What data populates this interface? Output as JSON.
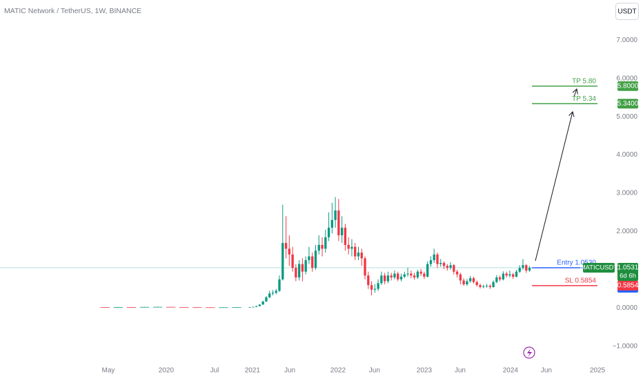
{
  "chart_data": {
    "type": "candlestick",
    "title": "MATIC Network / TetherUS, 1W, BINANCE",
    "currency": "USDT",
    "up_color": "#089981",
    "down_color": "#f23645",
    "xlim": [
      -65.8,
      306.5
    ],
    "ylim": [
      -1.4,
      8.05
    ],
    "xticks": [
      {
        "value": 0,
        "label": "May"
      },
      {
        "value": 35.2,
        "label": "2020"
      },
      {
        "value": 64.6,
        "label": "Jul"
      },
      {
        "value": 87.6,
        "label": "2021"
      },
      {
        "value": 110.3,
        "label": "Jun"
      },
      {
        "value": 139.6,
        "label": "2022"
      },
      {
        "value": 161.8,
        "label": "Jun"
      },
      {
        "value": 192,
        "label": "2023"
      },
      {
        "value": 213.8,
        "label": "Jun"
      },
      {
        "value": 244.4,
        "label": "2024"
      },
      {
        "value": 266.2,
        "label": "Jun"
      },
      {
        "value": 297.3,
        "label": "2025"
      }
    ],
    "yticks": [
      {
        "value": -1,
        "label": "−1.0000"
      },
      {
        "value": 0,
        "label": "0.0000"
      },
      {
        "value": 1,
        "label": "1.0000"
      },
      {
        "value": 2,
        "label": "2.0000"
      },
      {
        "value": 3,
        "label": "3.0000"
      },
      {
        "value": 4,
        "label": "4.0000"
      },
      {
        "value": 5,
        "label": "5.0000"
      },
      {
        "value": 6,
        "label": "6.0000"
      },
      {
        "value": 7,
        "label": "7.0000"
      }
    ],
    "x": [
      -2,
      6,
      14,
      22,
      30,
      38,
      46,
      54,
      62,
      70,
      78,
      86,
      88,
      90,
      92,
      94,
      96,
      98,
      100,
      102,
      104,
      106,
      108,
      110,
      112,
      114,
      116,
      118,
      120,
      122,
      124,
      126,
      128,
      130,
      132,
      134,
      136,
      138,
      140,
      142,
      144,
      146,
      148,
      150,
      152,
      154,
      156,
      158,
      160,
      162,
      164,
      166,
      168,
      170,
      172,
      174,
      176,
      178,
      180,
      182,
      184,
      186,
      188,
      190,
      192,
      194,
      196,
      198,
      200,
      202,
      204,
      206,
      208,
      210,
      212,
      214,
      216,
      218,
      220,
      222,
      224,
      226,
      228,
      230,
      232,
      234,
      236,
      238,
      240,
      242,
      244,
      246,
      248,
      250,
      252,
      254,
      256
    ],
    "open": [
      0.022,
      0.02,
      0.025,
      0.022,
      0.028,
      0.03,
      0.024,
      0.02,
      0.018,
      0.017,
      0.018,
      0.02,
      0.025,
      0.03,
      0.05,
      0.09,
      0.17,
      0.28,
      0.38,
      0.4,
      0.45,
      0.75,
      1.7,
      1.55,
      1.4,
      1.05,
      0.8,
      1.15,
      0.95,
      1.25,
      1.35,
      1.05,
      1.5,
      1.65,
      1.55,
      1.85,
      2.1,
      2.3,
      2.55,
      1.9,
      2.1,
      1.65,
      1.55,
      1.6,
      1.35,
      1.45,
      1.3,
      0.85,
      0.6,
      0.48,
      0.5,
      0.65,
      0.85,
      0.7,
      0.85,
      0.8,
      0.9,
      0.75,
      0.82,
      0.88,
      0.9,
      0.85,
      0.8,
      0.95,
      0.9,
      0.82,
      1.15,
      1.25,
      1.4,
      1.15,
      1.18,
      1.1,
      1.05,
      1.12,
      0.95,
      0.88,
      0.72,
      0.62,
      0.7,
      0.78,
      0.68,
      0.6,
      0.55,
      0.57,
      0.58,
      0.55,
      0.68,
      0.8,
      0.75,
      0.9,
      0.85,
      0.88,
      0.82,
      0.95,
      1.05,
      1.12,
      0.98
    ],
    "high": [
      0.026,
      0.03,
      0.028,
      0.032,
      0.036,
      0.031,
      0.026,
      0.022,
      0.02,
      0.021,
      0.023,
      0.028,
      0.035,
      0.06,
      0.1,
      0.19,
      0.31,
      0.45,
      0.47,
      0.5,
      0.85,
      2.7,
      2.4,
      1.9,
      1.6,
      1.15,
      1.25,
      1.3,
      1.35,
      1.6,
      1.45,
      1.65,
      1.9,
      1.85,
      2.05,
      2.5,
      2.75,
      2.9,
      2.85,
      2.4,
      2.2,
      1.85,
      1.8,
      1.7,
      1.6,
      1.55,
      1.35,
      0.95,
      0.7,
      0.62,
      0.75,
      0.95,
      0.92,
      0.95,
      0.92,
      0.98,
      0.95,
      0.9,
      0.95,
      1.05,
      0.98,
      0.92,
      1.0,
      1.02,
      0.95,
      1.22,
      1.35,
      1.55,
      1.45,
      1.28,
      1.22,
      1.15,
      1.2,
      1.15,
      1.0,
      0.92,
      0.78,
      0.76,
      0.84,
      0.82,
      0.72,
      0.64,
      0.61,
      0.63,
      0.62,
      0.72,
      0.86,
      0.85,
      0.96,
      0.95,
      0.98,
      0.92,
      1.0,
      1.12,
      1.28,
      1.15,
      1.1
    ],
    "low": [
      0.018,
      0.019,
      0.02,
      0.021,
      0.026,
      0.022,
      0.018,
      0.016,
      0.015,
      0.016,
      0.017,
      0.019,
      0.022,
      0.028,
      0.045,
      0.085,
      0.16,
      0.26,
      0.33,
      0.36,
      0.42,
      0.72,
      1.3,
      1.1,
      0.95,
      0.7,
      0.72,
      0.7,
      0.88,
      1.15,
      0.95,
      1.0,
      1.4,
      1.35,
      1.45,
      1.75,
      1.95,
      2.1,
      1.75,
      1.7,
      1.5,
      1.4,
      1.35,
      1.25,
      1.25,
      1.1,
      0.75,
      0.5,
      0.33,
      0.4,
      0.45,
      0.6,
      0.62,
      0.65,
      0.72,
      0.75,
      0.7,
      0.7,
      0.78,
      0.82,
      0.78,
      0.74,
      0.76,
      0.84,
      0.76,
      0.8,
      1.08,
      1.18,
      1.05,
      1.08,
      1.02,
      0.98,
      1.0,
      0.88,
      0.8,
      0.62,
      0.58,
      0.58,
      0.66,
      0.64,
      0.56,
      0.51,
      0.52,
      0.53,
      0.5,
      0.53,
      0.65,
      0.7,
      0.72,
      0.8,
      0.8,
      0.76,
      0.8,
      0.92,
      1.0,
      0.92,
      0.95
    ],
    "close": [
      0.02,
      0.025,
      0.022,
      0.028,
      0.03,
      0.024,
      0.02,
      0.018,
      0.017,
      0.018,
      0.02,
      0.025,
      0.03,
      0.05,
      0.09,
      0.17,
      0.28,
      0.38,
      0.4,
      0.45,
      0.75,
      1.7,
      1.55,
      1.4,
      1.05,
      0.8,
      1.15,
      0.95,
      1.25,
      1.35,
      1.05,
      1.5,
      1.65,
      1.55,
      1.85,
      2.1,
      2.3,
      2.55,
      1.9,
      2.1,
      1.65,
      1.55,
      1.6,
      1.35,
      1.45,
      1.3,
      0.85,
      0.6,
      0.48,
      0.5,
      0.65,
      0.85,
      0.7,
      0.85,
      0.8,
      0.9,
      0.75,
      0.82,
      0.88,
      0.9,
      0.85,
      0.8,
      0.95,
      0.9,
      0.82,
      1.15,
      1.25,
      1.4,
      1.15,
      1.18,
      1.1,
      1.05,
      1.12,
      0.95,
      0.88,
      0.72,
      0.62,
      0.7,
      0.78,
      0.68,
      0.6,
      0.55,
      0.57,
      0.58,
      0.55,
      0.68,
      0.8,
      0.75,
      0.9,
      0.85,
      0.88,
      0.82,
      0.95,
      1.05,
      1.12,
      0.98,
      1.0531
    ],
    "levels": [
      {
        "label": "TP 5.80",
        "value": 5.8,
        "value_label": "5.8000",
        "color": "#43a047"
      },
      {
        "label": "TP 5.34",
        "value": 5.34,
        "value_label": "5.3400",
        "color": "#43a047"
      },
      {
        "label": "Entry 1.0530",
        "value": 1.053,
        "value_label": "1.0530",
        "color": "#2962ff"
      },
      {
        "label": "SL 0.5854",
        "value": 0.5854,
        "value_label": "0.5854",
        "color": "#f23645"
      }
    ],
    "last_price": {
      "symbol": "MATICUSDT",
      "value": 1.0531,
      "value_label": "1.0531",
      "countdown": "6d 6h",
      "color": "#1e8e3e"
    }
  }
}
